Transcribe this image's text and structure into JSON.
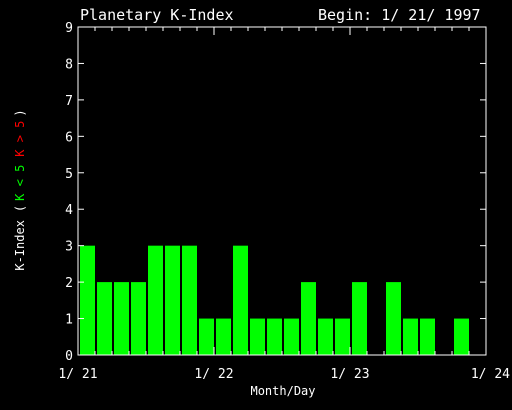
{
  "chart_data": {
    "type": "bar",
    "title": "Planetary K-Index",
    "subtitle": "Begin: 1/ 21/ 1997",
    "xlabel": "Month/Day",
    "ylabel": {
      "main": "K-Index",
      "open": "(",
      "green_part": "K < 5",
      "red_part": "K > 5",
      "close": ")"
    },
    "ylim": [
      0,
      9
    ],
    "y_ticks": [
      "0",
      "1",
      "2",
      "3",
      "4",
      "5",
      "6",
      "7",
      "8",
      "9"
    ],
    "x_ticks": [
      "1/ 21",
      "1/ 22",
      "1/ 23",
      "1/ 24"
    ],
    "intervals_per_day": 8,
    "values": [
      3,
      2,
      2,
      2,
      3,
      3,
      3,
      1,
      1,
      3,
      1,
      1,
      1,
      2,
      1,
      1,
      2,
      0,
      2,
      1,
      1,
      0,
      1,
      0
    ],
    "colors": {
      "background": "#000000",
      "frame": "#ffffff",
      "bar_low": "#00ff00",
      "bar_high": "#ff0000",
      "text": "#ffffff"
    }
  }
}
